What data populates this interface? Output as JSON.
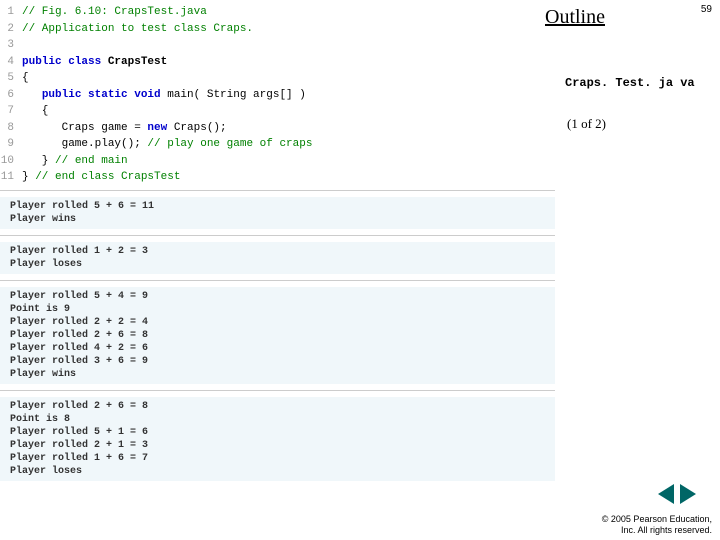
{
  "sidebar": {
    "outline": "Outline",
    "page_num": "59",
    "file_label": "Craps. Test. ja va",
    "counter": "(1 of  2)",
    "copyright_line1": "© 2005 Pearson Education,",
    "copyright_line2": "Inc. All rights reserved."
  },
  "code": {
    "lines": [
      {
        "num": "1",
        "tokens": [
          {
            "t": "// Fig. 6.10: CrapsTest.java",
            "c": "comment"
          }
        ]
      },
      {
        "num": "2",
        "tokens": [
          {
            "t": "// Application to test class Craps.",
            "c": "comment"
          }
        ]
      },
      {
        "num": "3",
        "tokens": [
          {
            "t": "",
            "c": ""
          }
        ]
      },
      {
        "num": "4",
        "tokens": [
          {
            "t": "public class ",
            "c": "kw"
          },
          {
            "t": "CrapsTest",
            "c": "type"
          }
        ]
      },
      {
        "num": "5",
        "tokens": [
          {
            "t": "{",
            "c": ""
          }
        ]
      },
      {
        "num": "6",
        "tokens": [
          {
            "t": "   ",
            "c": ""
          },
          {
            "t": "public static void ",
            "c": "kw"
          },
          {
            "t": "main( String args[] )",
            "c": ""
          }
        ]
      },
      {
        "num": "7",
        "tokens": [
          {
            "t": "   {",
            "c": ""
          }
        ]
      },
      {
        "num": "8",
        "tokens": [
          {
            "t": "      Craps game = ",
            "c": ""
          },
          {
            "t": "new ",
            "c": "kw"
          },
          {
            "t": "Craps();",
            "c": ""
          }
        ]
      },
      {
        "num": "9",
        "tokens": [
          {
            "t": "      game.play(); ",
            "c": ""
          },
          {
            "t": "// play one game of craps",
            "c": "comment"
          }
        ]
      },
      {
        "num": "10",
        "tokens": [
          {
            "t": "   } ",
            "c": ""
          },
          {
            "t": "// end main",
            "c": "comment"
          }
        ]
      },
      {
        "num": "11",
        "tokens": [
          {
            "t": "} ",
            "c": ""
          },
          {
            "t": "// end class CrapsTest",
            "c": "comment"
          }
        ]
      }
    ]
  },
  "outputs": [
    [
      "Player rolled 5 + 6 = 11",
      "Player wins"
    ],
    [
      "Player rolled 1 + 2 = 3",
      "Player loses"
    ],
    [
      "Player rolled 5 + 4 = 9",
      "Point is 9",
      "Player rolled 2 + 2 = 4",
      "Player rolled 2 + 6 = 8",
      "Player rolled 4 + 2 = 6",
      "Player rolled 3 + 6 = 9",
      "Player wins"
    ],
    [
      "Player rolled 2 + 6 = 8",
      "Point is 8",
      "Player rolled 5 + 1 = 6",
      "Player rolled 2 + 1 = 3",
      "Player rolled 1 + 6 = 7",
      "Player loses"
    ]
  ],
  "colors": {
    "keyword": "#0000cc",
    "comment": "#008000",
    "output_bg": "#f0f7fa",
    "nav": "#006666"
  }
}
